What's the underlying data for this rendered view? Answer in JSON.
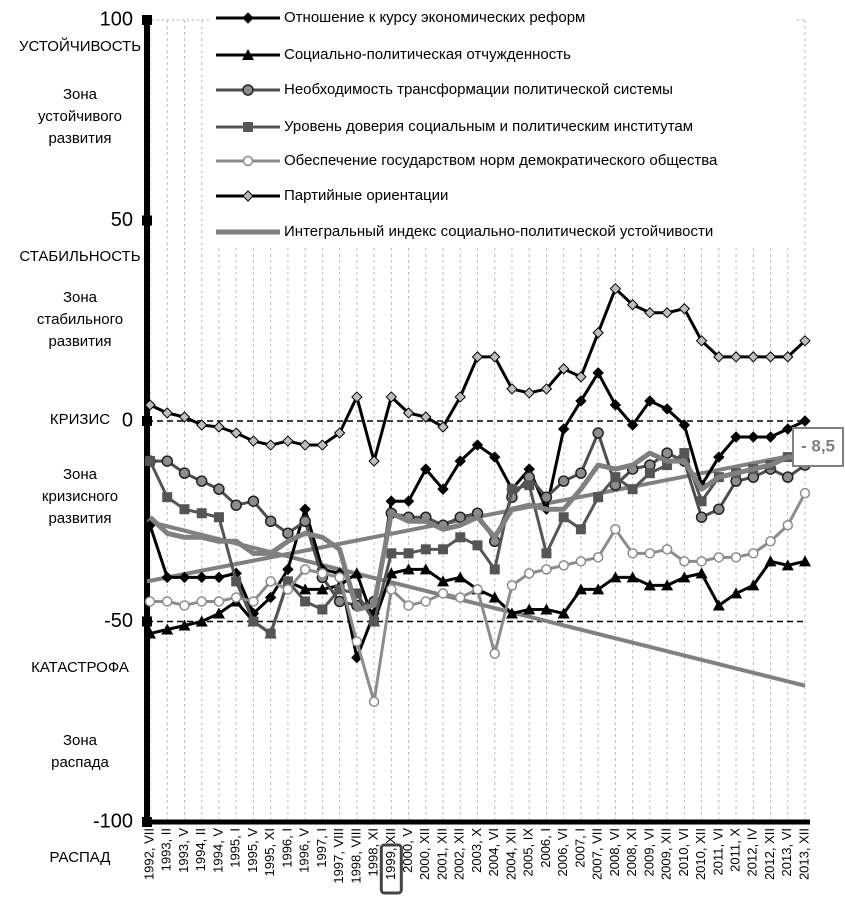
{
  "chart_data": {
    "type": "line",
    "categories": [
      "1992, VII",
      "1993, II",
      "1993, V",
      "1994, II",
      "1994, V",
      "1995, I",
      "1995, V",
      "1995, XI",
      "1996, I",
      "1996, V",
      "1997, I",
      "1997, VIII",
      "1998, VIII",
      "1998, XI",
      "1999, XII",
      "2000, V",
      "2000, XII",
      "2001, XII",
      "2002, XII",
      "2003, X",
      "2004, VI",
      "2004, XII",
      "2005, IX",
      "2006, I",
      "2006, VI",
      "2007, I",
      "2007, VII",
      "2008, VI",
      "2008, XI",
      "2009, VI",
      "2009, XII",
      "2010, VI",
      "2010, XII",
      "2011, VI",
      "2011, X",
      "2012, IV",
      "2012, XII",
      "2013, VI",
      "2013, XII"
    ],
    "highlight_category": 14,
    "ylim": [
      -100,
      100
    ],
    "yticks": [
      -100,
      -50,
      0,
      50,
      100
    ],
    "reference_lines": [
      0,
      -50
    ],
    "grid": true,
    "series": [
      {
        "name": "Отношение к курсу экономических реформ",
        "color": "#000000",
        "marker": "diamond",
        "marker_color": "#000000",
        "width": 3,
        "values": [
          -26,
          -39,
          -39,
          -39,
          -39,
          -38,
          -48,
          -44,
          -37,
          -22,
          -37,
          -38,
          -59,
          -48,
          -20,
          -20,
          -12,
          -17,
          -10,
          -6,
          -9,
          -17,
          -12,
          -22,
          -2,
          5,
          12,
          4,
          -1,
          5,
          3,
          -1,
          -16,
          -9,
          -4,
          -4,
          -4,
          -2,
          0
        ]
      },
      {
        "name": "Социально-политическая отчужденность",
        "color": "#000000",
        "marker": "triangle",
        "marker_color": "#000000",
        "width": 3,
        "values": [
          -53,
          -52,
          -51,
          -50,
          -48,
          -45,
          -50,
          -53,
          -40,
          -42,
          -42,
          -41,
          -38,
          -50,
          -38,
          -37,
          -37,
          -40,
          -39,
          -42,
          -44,
          -48,
          -47,
          -47,
          -48,
          -42,
          -42,
          -39,
          -39,
          -41,
          -41,
          -39,
          -38,
          -46,
          -43,
          -41,
          -35,
          -36,
          -35
        ]
      },
      {
        "name": "Необходимость трансформации политической системы",
        "color": "#4d4d4d",
        "marker": "circle",
        "marker_color": "#8c8c8c",
        "width": 3,
        "values": [
          -10,
          -10,
          -13,
          -15,
          -17,
          -21,
          -20,
          -25,
          -28,
          -25,
          -39,
          -45,
          -46,
          -45,
          -23,
          -24,
          -24,
          -26,
          -24,
          -23,
          -30,
          -19,
          -14,
          -19,
          -15,
          -13,
          -3,
          -16,
          -12,
          -11,
          -8,
          -10,
          -24,
          -22,
          -15,
          -14,
          -12,
          -14,
          -11
        ]
      },
      {
        "name": "Уровень доверия социальным и политическим институтам",
        "color": "#555555",
        "marker": "square",
        "marker_color": "#555555",
        "width": 3,
        "values": [
          -10,
          -19,
          -22,
          -23,
          -24,
          -40,
          -50,
          -53,
          -40,
          -45,
          -47,
          -42,
          -43,
          -50,
          -33,
          -33,
          -32,
          -32,
          -29,
          -31,
          -37,
          -17,
          -16,
          -33,
          -24,
          -27,
          -19,
          -14,
          -17,
          -13,
          -11,
          -8,
          -20,
          -14,
          -13,
          -12,
          -11,
          -9,
          -9
        ]
      },
      {
        "name": "Обеспечение государством норм демократического общества",
        "color": "#8c8c8c",
        "marker": "open-circle",
        "marker_color": "#ffffff",
        "width": 3,
        "values": [
          -45,
          -45,
          -46,
          -45,
          -45,
          -44,
          -45,
          -40,
          -42,
          -37,
          -38,
          -39,
          -55,
          -70,
          -42,
          -46,
          -45,
          -43,
          -44,
          -42,
          -58,
          -41,
          -38,
          -37,
          -36,
          -35,
          -34,
          -27,
          -33,
          -33,
          -32,
          -35,
          -35,
          -34,
          -34,
          -33,
          -30,
          -26,
          -18
        ]
      },
      {
        "name": "Партийные ориентации",
        "color": "#000000",
        "marker": "diamond",
        "marker_color": "#bdbdbd",
        "width": 3,
        "values": [
          4,
          2,
          1,
          -1,
          -1.5,
          -3,
          -5,
          -6,
          -5,
          -6,
          -6,
          -3,
          6,
          -10,
          6,
          2,
          1,
          -1.5,
          6,
          16,
          16,
          8,
          7,
          8,
          13,
          11,
          22,
          33,
          29,
          27,
          27,
          28,
          20,
          16,
          16,
          16,
          16,
          16,
          20
        ]
      },
      {
        "name": "Интегральный индекс социально-политической устойчивости",
        "color": "#808080",
        "marker": "none",
        "marker_color": "#808080",
        "width": 5,
        "values": [
          -24,
          -28,
          -29,
          -29,
          -30,
          -30,
          -33,
          -33,
          -30,
          -28,
          -29,
          -32,
          -47,
          -46,
          -23,
          -25,
          -25,
          -27,
          -26,
          -24,
          -29,
          -22,
          -21,
          -22,
          -22,
          -17,
          -11,
          -12,
          -11,
          -8,
          -10,
          -10,
          -17,
          -14,
          -13,
          -12,
          -11,
          -9,
          -9
        ]
      }
    ],
    "trend_lines": [
      {
        "color": "#808080",
        "values": [
          -40,
          -8
        ]
      },
      {
        "color": "#808080",
        "values": [
          -25,
          -66
        ]
      }
    ],
    "annotation": "- 8,5",
    "zone_labels": [
      {
        "lines": [
          "УСТОЙЧИВОСТЬ"
        ]
      },
      {
        "lines": [
          "Зона",
          "устойчивого",
          "развития"
        ]
      },
      {
        "lines": [
          "СТАБИЛЬНОСТЬ"
        ]
      },
      {
        "lines": [
          "Зона",
          "стабильного",
          "развития"
        ]
      },
      {
        "lines": [
          "КРИЗИС"
        ]
      },
      {
        "lines": [
          "Зона",
          "кризисного",
          "развития"
        ]
      },
      {
        "lines": [
          "КАТАСТРОФА"
        ]
      },
      {
        "lines": [
          "Зона",
          "распада"
        ]
      },
      {
        "lines": [
          "РАСПАД"
        ]
      }
    ]
  }
}
